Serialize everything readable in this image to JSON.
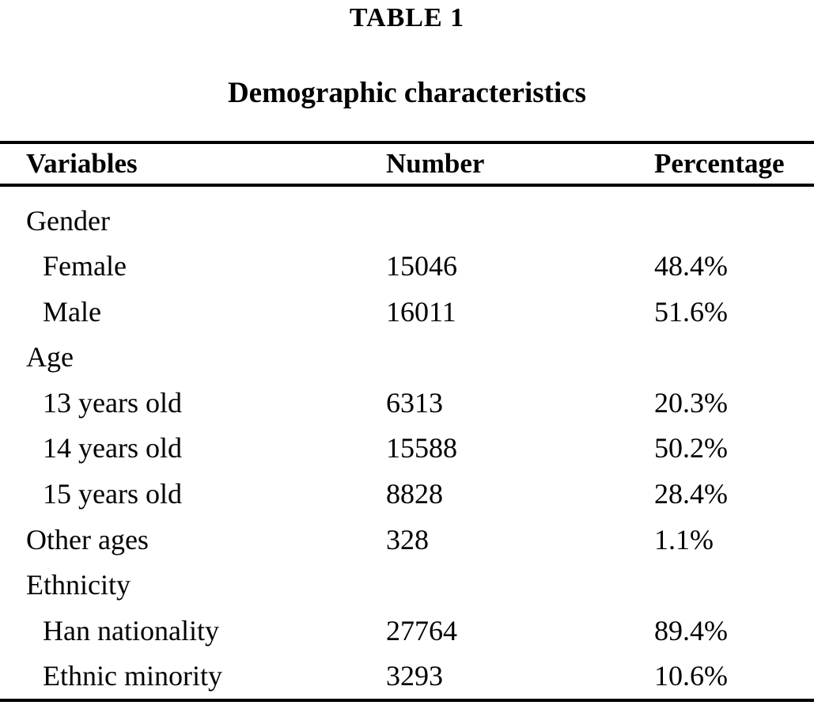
{
  "table": {
    "label": "TABLE 1",
    "title": "Demographic characteristics",
    "columns": [
      "Variables",
      "Number",
      "Percentage"
    ],
    "rows": [
      {
        "label": "Gender",
        "number": "",
        "percentage": "",
        "indent": false
      },
      {
        "label": "Female",
        "number": "15046",
        "percentage": "48.4%",
        "indent": true
      },
      {
        "label": "Male",
        "number": "16011",
        "percentage": "51.6%",
        "indent": true
      },
      {
        "label": "Age",
        "number": "",
        "percentage": "",
        "indent": false
      },
      {
        "label": "13 years old",
        "number": "6313",
        "percentage": "20.3%",
        "indent": true
      },
      {
        "label": "14 years old",
        "number": "15588",
        "percentage": "50.2%",
        "indent": true
      },
      {
        "label": "15 years old",
        "number": "8828",
        "percentage": "28.4%",
        "indent": true
      },
      {
        "label": "Other ages",
        "number": "328",
        "percentage": "1.1%",
        "indent": false
      },
      {
        "label": "Ethnicity",
        "number": "",
        "percentage": "",
        "indent": false
      },
      {
        "label": "Han nationality",
        "number": "27764",
        "percentage": "89.4%",
        "indent": true
      },
      {
        "label": "Ethnic minority",
        "number": "3293",
        "percentage": "10.6%",
        "indent": true
      }
    ]
  }
}
